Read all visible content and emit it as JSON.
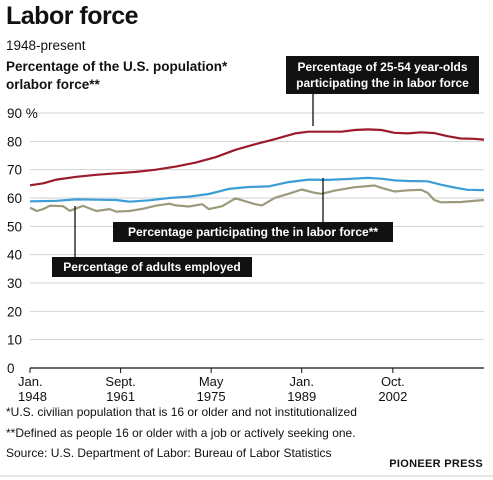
{
  "header": {
    "title": "Labor force",
    "subtitle": "1948-present",
    "chart_heading_line1": "Percentage of the U.S. population*",
    "chart_heading_line2": "orlabor force**"
  },
  "footer": {
    "note1": "*U.S. civilian population that is 16 or older and not institutionalized",
    "note2": "**Defined as people 16 or older with a job or actively seeking one.",
    "source": "Source: U.S. Department of Labor: Bureau of Labor Statistics",
    "credit": "PIONEER PRESS"
  },
  "chart_data": {
    "type": "line",
    "y_ticks": [
      "90 %",
      "80",
      "70",
      "60",
      "50",
      "40",
      "30",
      "20",
      "10",
      "0"
    ],
    "ylim": [
      0,
      90
    ],
    "x_ticks": [
      {
        "line1": "Jan.",
        "line2": "1948",
        "x": 1948.0
      },
      {
        "line1": "Sept.",
        "line2": "1961",
        "x": 1961.67
      },
      {
        "line1": "May",
        "line2": "1975",
        "x": 1975.33
      },
      {
        "line1": "Jan.",
        "line2": "1989",
        "x": 1989.0
      },
      {
        "line1": "Oct.",
        "line2": "2002",
        "x": 2002.75
      }
    ],
    "xlim": [
      1948,
      2016.5
    ],
    "grid": "horizontal",
    "colors": {
      "prime_age": "#9b1b2d",
      "participation": "#3d9dd6",
      "employed": "#9c9a7a",
      "callout": "#111111"
    },
    "series": [
      {
        "key": "prime_age",
        "color": "#9b1b2d",
        "x": [
          1948,
          1950,
          1952,
          1955,
          1958,
          1961,
          1964,
          1967,
          1970,
          1973,
          1976,
          1979,
          1982,
          1985,
          1988,
          1990,
          1992,
          1995,
          1997,
          1999,
          2001,
          2003,
          2005,
          2007,
          2009,
          2011,
          2013,
          2015,
          2016.5
        ],
        "values": [
          64.5,
          65.2,
          66.5,
          67.5,
          68.2,
          68.7,
          69.2,
          70.0,
          71.1,
          72.5,
          74.4,
          77.0,
          79.0,
          80.8,
          82.8,
          83.4,
          83.4,
          83.4,
          84.0,
          84.2,
          84.0,
          83.0,
          82.8,
          83.2,
          82.9,
          81.8,
          81.0,
          80.9,
          80.6
        ]
      },
      {
        "key": "participation",
        "color": "#3d9dd6",
        "x": [
          1948,
          1952,
          1955,
          1958,
          1961,
          1963,
          1966,
          1969,
          1972,
          1975,
          1978,
          1981,
          1984,
          1987,
          1990,
          1993,
          1996,
          1999,
          2001,
          2003,
          2005,
          2008,
          2010,
          2012,
          2014,
          2016.5
        ],
        "values": [
          58.8,
          59.0,
          59.5,
          59.4,
          59.3,
          58.7,
          59.2,
          60.0,
          60.5,
          61.4,
          63.2,
          63.9,
          64.1,
          65.6,
          66.5,
          66.4,
          66.7,
          67.1,
          66.8,
          66.2,
          66.0,
          65.9,
          64.7,
          63.7,
          62.9,
          62.8
        ]
      },
      {
        "key": "employed",
        "color": "#9c9a7a",
        "x": [
          1948,
          1949,
          1950,
          1951,
          1953,
          1954,
          1956,
          1958,
          1960,
          1961,
          1963,
          1965,
          1967,
          1969,
          1970,
          1972,
          1974,
          1975,
          1977,
          1979,
          1980,
          1982,
          1983,
          1985,
          1987,
          1989,
          1991,
          1992,
          1994,
          1997,
          2000,
          2001,
          2003,
          2005,
          2007,
          2008,
          2009,
          2010,
          2013,
          2016.5
        ],
        "values": [
          56.6,
          55.4,
          56.1,
          57.3,
          57.1,
          55.5,
          57.2,
          55.4,
          56.1,
          55.2,
          55.4,
          56.2,
          57.3,
          58.0,
          57.4,
          57.0,
          57.8,
          56.1,
          57.1,
          59.9,
          59.2,
          57.8,
          57.4,
          60.1,
          61.5,
          63.0,
          61.8,
          61.5,
          62.6,
          63.8,
          64.4,
          63.6,
          62.3,
          62.7,
          62.9,
          61.8,
          59.3,
          58.5,
          58.6,
          59.3
        ]
      }
    ],
    "annotations": [
      {
        "key": "prime_age",
        "line1": "Percentage of 25-54 year-olds",
        "line2": "participating the in labor force"
      },
      {
        "key": "participation",
        "line1": "Percentage participating the in labor force**"
      },
      {
        "key": "employed",
        "line1": "Percentage of  adults employed"
      }
    ]
  }
}
